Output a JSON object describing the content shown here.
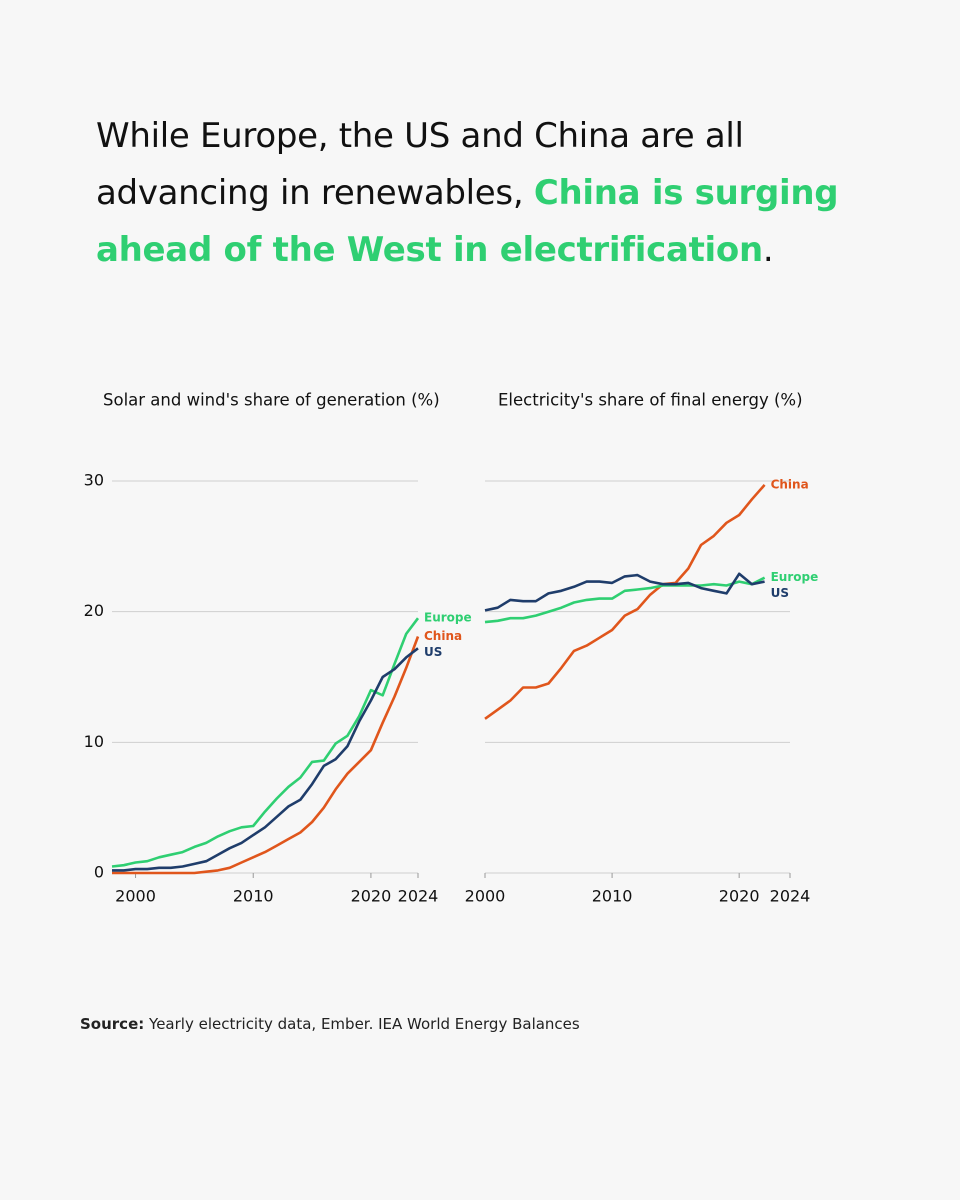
{
  "header": {
    "title_start": "While Europe, the US and China are all advancing in renewables,",
    "title_highlight": "China is surging ahead of the West in electrification",
    "title_end": "."
  },
  "chart_data": [
    {
      "type": "line",
      "title": "Solar and wind's share of generation (%)",
      "x": [
        1998,
        1999,
        2000,
        2001,
        2002,
        2003,
        2004,
        2005,
        2006,
        2007,
        2008,
        2009,
        2010,
        2011,
        2012,
        2013,
        2014,
        2015,
        2016,
        2017,
        2018,
        2019,
        2020,
        2021,
        2022,
        2023,
        2024
      ],
      "xlim": [
        1998,
        2024
      ],
      "xticks": [
        2000,
        2010,
        2020,
        2024
      ],
      "ylim": [
        0,
        30
      ],
      "yticks": [
        0,
        10,
        20,
        30
      ],
      "grid": true,
      "series": [
        {
          "name": "Europe",
          "color": "#2fcf72",
          "values": [
            0.5,
            0.6,
            0.8,
            0.9,
            1.2,
            1.4,
            1.6,
            2.0,
            2.3,
            2.8,
            3.2,
            3.5,
            3.6,
            4.7,
            5.7,
            6.6,
            7.3,
            8.5,
            8.6,
            9.9,
            10.5,
            12.0,
            14.0,
            13.6,
            16.0,
            18.3,
            19.5
          ]
        },
        {
          "name": "China",
          "color": "#e0561c",
          "values": [
            0,
            0,
            0,
            0,
            0,
            0,
            0,
            0,
            0.1,
            0.2,
            0.4,
            0.8,
            1.2,
            1.6,
            2.1,
            2.6,
            3.1,
            3.9,
            5.0,
            6.4,
            7.6,
            8.5,
            9.4,
            11.5,
            13.5,
            15.7,
            18.1
          ]
        },
        {
          "name": "US",
          "color": "#1f3d6b",
          "values": [
            0.2,
            0.2,
            0.3,
            0.3,
            0.4,
            0.4,
            0.5,
            0.7,
            0.9,
            1.4,
            1.9,
            2.3,
            2.9,
            3.5,
            4.3,
            5.1,
            5.6,
            6.8,
            8.2,
            8.7,
            9.7,
            11.6,
            13.2,
            15.0,
            15.6,
            16.5,
            17.2
          ]
        }
      ]
    },
    {
      "type": "line",
      "title": "Electricity's share of final energy (%)",
      "x": [
        2000,
        2001,
        2002,
        2003,
        2004,
        2005,
        2006,
        2007,
        2008,
        2009,
        2010,
        2011,
        2012,
        2013,
        2014,
        2015,
        2016,
        2017,
        2018,
        2019,
        2020,
        2021,
        2022
      ],
      "xlim": [
        2000,
        2024
      ],
      "xticks": [
        2000,
        2010,
        2020,
        2024
      ],
      "ylim": [
        0,
        30
      ],
      "yticks": [
        0,
        10,
        20,
        30
      ],
      "grid": true,
      "series": [
        {
          "name": "China",
          "color": "#e0561c",
          "values": [
            11.8,
            12.5,
            13.2,
            14.2,
            14.2,
            14.5,
            15.7,
            17.0,
            17.4,
            18.0,
            18.6,
            19.7,
            20.2,
            21.3,
            22.1,
            22.2,
            23.3,
            25.1,
            25.8,
            26.8,
            27.4,
            28.6,
            29.7
          ]
        },
        {
          "name": "Europe",
          "color": "#2fcf72",
          "values": [
            19.2,
            19.3,
            19.5,
            19.5,
            19.7,
            20.0,
            20.3,
            20.7,
            20.9,
            21.0,
            21.0,
            21.6,
            21.7,
            21.8,
            22.0,
            22.0,
            22.0,
            22.0,
            22.1,
            22.0,
            22.3,
            22.1,
            22.6
          ]
        },
        {
          "name": "US",
          "color": "#1f3d6b",
          "values": [
            20.1,
            20.3,
            20.9,
            20.8,
            20.8,
            21.4,
            21.6,
            21.9,
            22.3,
            22.3,
            22.2,
            22.7,
            22.8,
            22.3,
            22.1,
            22.1,
            22.2,
            21.8,
            21.6,
            21.4,
            22.9,
            22.1,
            22.3
          ]
        }
      ]
    }
  ],
  "footer": {
    "source_label": "Source:",
    "source_text": "Yearly electricity data, Ember. IEA World Energy Balances"
  }
}
